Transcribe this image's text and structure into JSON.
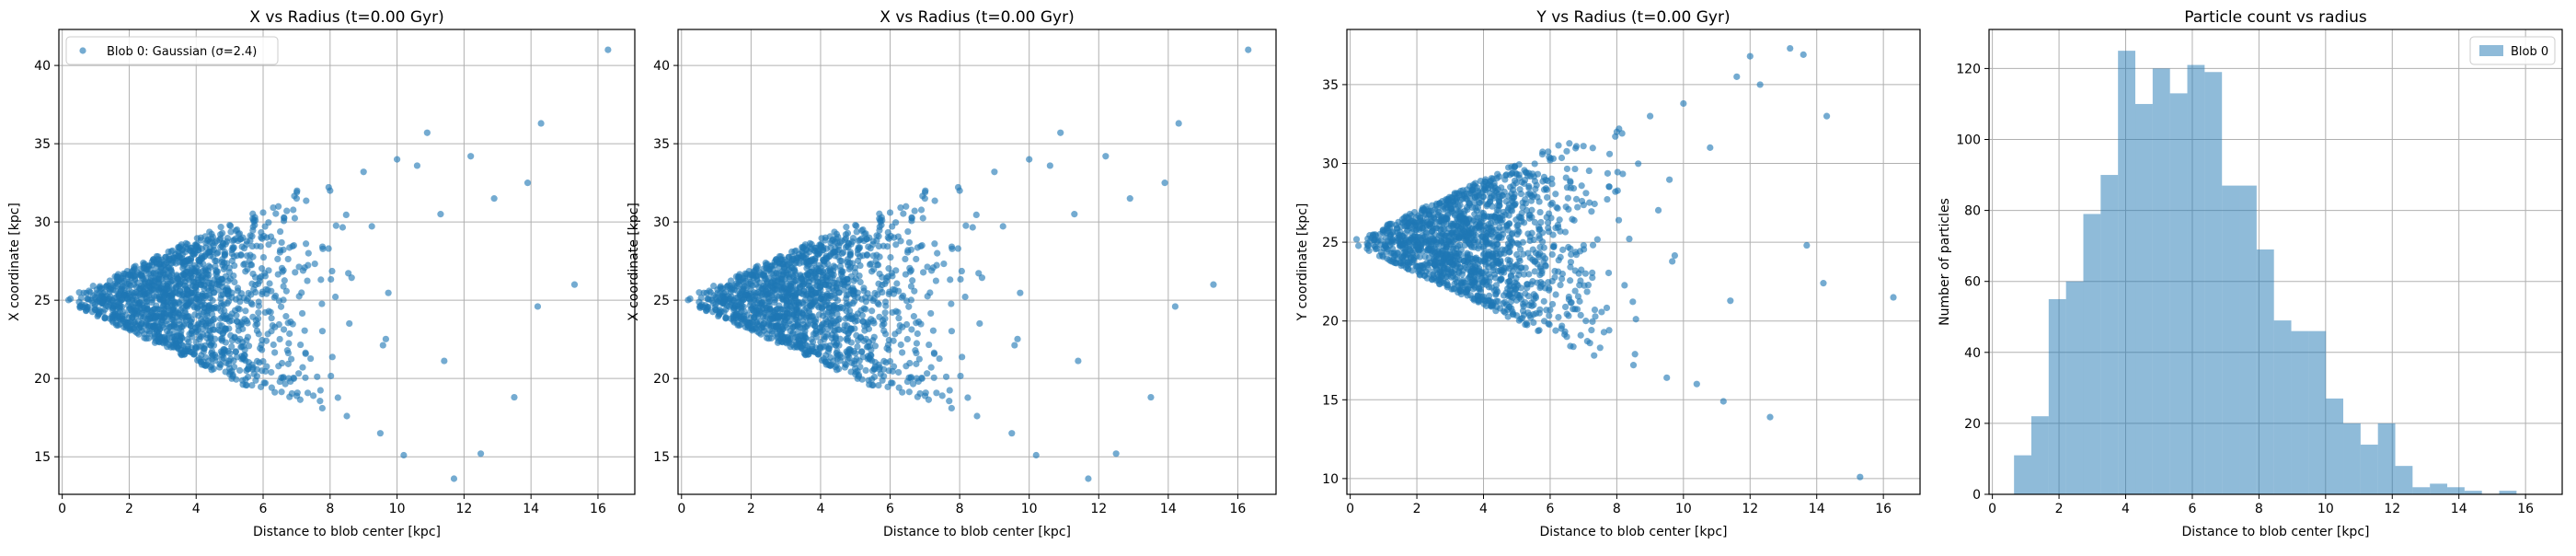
{
  "chart_data": [
    {
      "type": "scatter",
      "title": "X vs Radius (t=0.00 Gyr)",
      "xlabel": "Distance to blob center [kpc]",
      "ylabel": "X coordinate [kpc]",
      "xlim": [
        -0.1,
        17.1
      ],
      "ylim": [
        12.6,
        42.3
      ],
      "xticks": [
        "0",
        "2",
        "4",
        "6",
        "8",
        "10",
        "12",
        "14",
        "16"
      ],
      "yticks": [
        "15",
        "20",
        "25",
        "30",
        "35",
        "40"
      ],
      "grid": true,
      "legend": {
        "position": "upper left",
        "entries": [
          "Blob 0: Gaussian (σ=2.4)"
        ]
      },
      "color": "#1f77b4",
      "series": [
        {
          "name": "Blob 0: Gaussian (σ=2.4)",
          "points": [
            [
              0.8,
              25.6
            ],
            [
              1.2,
              24.8
            ],
            [
              1.6,
              25.9
            ],
            [
              2.1,
              26.8
            ],
            [
              2.5,
              23.5
            ],
            [
              3.0,
              27.2
            ],
            [
              3.5,
              22.4
            ],
            [
              4.0,
              28.5
            ],
            [
              4.5,
              21.5
            ],
            [
              5.0,
              29.8
            ],
            [
              5.5,
              20.5
            ],
            [
              6.0,
              30.6
            ],
            [
              6.5,
              19.8
            ],
            [
              7.0,
              31.5
            ],
            [
              7.5,
              18.9
            ],
            [
              8.0,
              32.0
            ],
            [
              8.5,
              17.6
            ],
            [
              9.0,
              33.2
            ],
            [
              9.5,
              16.5
            ],
            [
              10.0,
              34.0
            ],
            [
              10.2,
              15.1
            ],
            [
              10.6,
              33.6
            ],
            [
              10.9,
              35.7
            ],
            [
              11.3,
              30.5
            ],
            [
              11.7,
              13.6
            ],
            [
              12.2,
              34.2
            ],
            [
              12.5,
              15.2
            ],
            [
              12.9,
              31.5
            ],
            [
              13.5,
              18.8
            ],
            [
              13.9,
              32.5
            ],
            [
              14.2,
              24.6
            ],
            [
              14.3,
              36.3
            ],
            [
              15.3,
              26.0
            ],
            [
              16.3,
              41.0
            ]
          ]
        }
      ]
    },
    {
      "type": "scatter",
      "title": "X vs Radius (t=0.00 Gyr)",
      "xlabel": "Distance to blob center [kpc]",
      "ylabel": "X coordinate [kpc]",
      "xlim": [
        -0.1,
        17.1
      ],
      "ylim": [
        12.6,
        42.3
      ],
      "xticks": [
        "0",
        "2",
        "4",
        "6",
        "8",
        "10",
        "12",
        "14",
        "16"
      ],
      "yticks": [
        "15",
        "20",
        "25",
        "30",
        "35",
        "40"
      ],
      "grid": true,
      "color": "#1f77b4",
      "series": [
        {
          "points": [
            [
              0.8,
              25.6
            ],
            [
              1.2,
              24.8
            ],
            [
              1.6,
              25.9
            ],
            [
              2.1,
              26.8
            ],
            [
              2.5,
              23.5
            ],
            [
              3.0,
              27.2
            ],
            [
              3.5,
              22.4
            ],
            [
              4.0,
              28.5
            ],
            [
              4.5,
              21.5
            ],
            [
              5.0,
              29.8
            ],
            [
              5.5,
              20.5
            ],
            [
              6.0,
              30.6
            ],
            [
              6.5,
              19.8
            ],
            [
              7.0,
              31.5
            ],
            [
              7.5,
              18.9
            ],
            [
              8.0,
              32.0
            ],
            [
              8.5,
              17.6
            ],
            [
              9.0,
              33.2
            ],
            [
              9.5,
              16.5
            ],
            [
              10.0,
              34.0
            ],
            [
              10.2,
              15.1
            ],
            [
              10.6,
              33.6
            ],
            [
              10.9,
              35.7
            ],
            [
              11.3,
              30.5
            ],
            [
              11.7,
              13.6
            ],
            [
              12.2,
              34.2
            ],
            [
              12.5,
              15.2
            ],
            [
              12.9,
              31.5
            ],
            [
              13.5,
              18.8
            ],
            [
              13.9,
              32.5
            ],
            [
              14.2,
              24.6
            ],
            [
              14.3,
              36.3
            ],
            [
              15.3,
              26.0
            ],
            [
              16.3,
              41.0
            ]
          ]
        }
      ]
    },
    {
      "type": "scatter",
      "title": "Y vs Radius (t=0.00 Gyr)",
      "xlabel": "Distance to blob center [kpc]",
      "ylabel": "Y coordinate [kpc]",
      "xlim": [
        -0.1,
        17.1
      ],
      "ylim": [
        9.0,
        38.5
      ],
      "xticks": [
        "0",
        "2",
        "4",
        "6",
        "8",
        "10",
        "12",
        "14",
        "16"
      ],
      "yticks": [
        "10",
        "15",
        "20",
        "25",
        "30",
        "35"
      ],
      "grid": true,
      "color": "#1f77b4",
      "series": [
        {
          "points": [
            [
              0.8,
              24.6
            ],
            [
              1.2,
              25.5
            ],
            [
              1.6,
              23.8
            ],
            [
              2.1,
              26.5
            ],
            [
              2.5,
              22.8
            ],
            [
              3.0,
              27.4
            ],
            [
              3.5,
              21.9
            ],
            [
              4.0,
              28.3
            ],
            [
              4.5,
              20.8
            ],
            [
              5.0,
              29.3
            ],
            [
              5.5,
              19.9
            ],
            [
              6.0,
              30.2
            ],
            [
              6.5,
              19.0
            ],
            [
              7.0,
              31.1
            ],
            [
              7.5,
              18.3
            ],
            [
              8.0,
              32.0
            ],
            [
              8.5,
              17.2
            ],
            [
              9.0,
              33.0
            ],
            [
              9.5,
              16.4
            ],
            [
              10.0,
              33.8
            ],
            [
              10.4,
              16.0
            ],
            [
              10.8,
              31.0
            ],
            [
              11.2,
              14.9
            ],
            [
              11.6,
              35.5
            ],
            [
              12.0,
              36.8
            ],
            [
              12.3,
              35.0
            ],
            [
              12.6,
              13.9
            ],
            [
              13.2,
              37.3
            ],
            [
              13.6,
              36.9
            ],
            [
              13.7,
              24.8
            ],
            [
              14.2,
              22.4
            ],
            [
              14.3,
              33.0
            ],
            [
              15.3,
              10.1
            ],
            [
              16.3,
              21.5
            ]
          ]
        }
      ]
    },
    {
      "type": "bar",
      "title": "Particle count vs radius",
      "xlabel": "Distance to blob center [kpc]",
      "ylabel": "Number of particles",
      "xlim": [
        -0.1,
        17.1
      ],
      "ylim": [
        0,
        131
      ],
      "xticks": [
        "0",
        "2",
        "4",
        "6",
        "8",
        "10",
        "12",
        "14",
        "16"
      ],
      "yticks": [
        "0",
        "20",
        "40",
        "60",
        "80",
        "100",
        "120"
      ],
      "grid": true,
      "legend": {
        "position": "upper right",
        "entries": [
          "Blob 0"
        ]
      },
      "color": "#1f77b4",
      "bin_width": 0.52,
      "bin_edges_start": 0.65,
      "series": [
        {
          "name": "Blob 0",
          "values": [
            11,
            22,
            55,
            60,
            79,
            90,
            125,
            110,
            120,
            113,
            121,
            119,
            87,
            87,
            69,
            49,
            46,
            46,
            27,
            20,
            14,
            20,
            8,
            2,
            3,
            2,
            1,
            0,
            1
          ]
        }
      ]
    }
  ]
}
